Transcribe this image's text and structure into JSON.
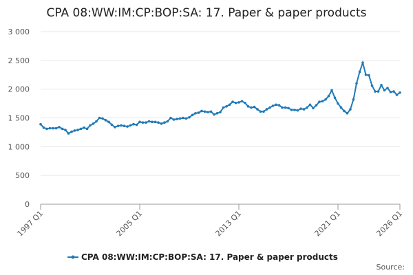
{
  "chart_data": {
    "type": "line",
    "title": "CPA 08:WW:IM:CP:BOP:SA: 17. Paper & paper products",
    "source": "Source:",
    "categories": [
      "1997 Q1",
      null,
      null,
      null,
      null,
      null,
      null,
      null,
      null,
      null,
      null,
      null,
      null,
      null,
      null,
      null,
      null,
      null,
      null,
      null,
      null,
      null,
      null,
      null,
      null,
      null,
      null,
      null,
      null,
      null,
      null,
      null,
      "2005 Q1",
      null,
      null,
      null,
      null,
      null,
      null,
      null,
      null,
      null,
      null,
      null,
      null,
      null,
      null,
      null,
      null,
      null,
      null,
      null,
      null,
      null,
      null,
      null,
      null,
      null,
      null,
      null,
      null,
      null,
      null,
      null,
      "2013 Q1",
      null,
      null,
      null,
      null,
      null,
      null,
      null,
      null,
      null,
      null,
      null,
      null,
      null,
      null,
      null,
      null,
      null,
      null,
      null,
      null,
      null,
      null,
      null,
      null,
      null,
      null,
      null,
      null,
      null,
      null,
      null,
      "2021 Q1",
      null,
      null,
      null,
      null,
      null,
      null,
      null,
      null,
      null,
      null,
      null,
      null,
      null,
      null,
      null,
      null,
      null,
      null,
      null,
      "2026 Q1"
    ],
    "series": [
      {
        "name": "CPA 08:WW:IM:CP:BOP:SA: 17. Paper & paper products",
        "color": "#1f7ab8",
        "values": [
          1390,
          1330,
          1310,
          1320,
          1320,
          1320,
          1340,
          1310,
          1290,
          1230,
          1260,
          1280,
          1290,
          1310,
          1330,
          1310,
          1370,
          1400,
          1440,
          1500,
          1490,
          1460,
          1430,
          1380,
          1340,
          1360,
          1370,
          1360,
          1350,
          1370,
          1390,
          1380,
          1430,
          1420,
          1420,
          1440,
          1430,
          1430,
          1420,
          1400,
          1420,
          1440,
          1500,
          1470,
          1480,
          1490,
          1500,
          1490,
          1510,
          1550,
          1580,
          1590,
          1620,
          1610,
          1600,
          1610,
          1560,
          1580,
          1600,
          1680,
          1700,
          1730,
          1780,
          1760,
          1770,
          1790,
          1760,
          1700,
          1680,
          1690,
          1650,
          1610,
          1610,
          1650,
          1680,
          1710,
          1730,
          1720,
          1680,
          1680,
          1670,
          1640,
          1640,
          1630,
          1660,
          1650,
          1680,
          1730,
          1670,
          1720,
          1780,
          1790,
          1820,
          1880,
          1980,
          1850,
          1750,
          1680,
          1620,
          1580,
          1650,
          1820,
          2100,
          2300,
          2460,
          2250,
          2240,
          2060,
          1960,
          1960,
          2070,
          1980,
          2020,
          1950,
          1960,
          1900,
          1940
        ]
      }
    ],
    "ylim": [
      0,
      3000
    ],
    "yticks": [
      0,
      500,
      {
        "value": 1000,
        "label": "1 000"
      },
      {
        "value": 1500,
        "label": "1 500"
      },
      {
        "value": 2000,
        "label": "2 000"
      },
      {
        "value": 2500,
        "label": "2 500"
      },
      {
        "value": 3000,
        "label": "3 000"
      }
    ],
    "grid": true
  }
}
